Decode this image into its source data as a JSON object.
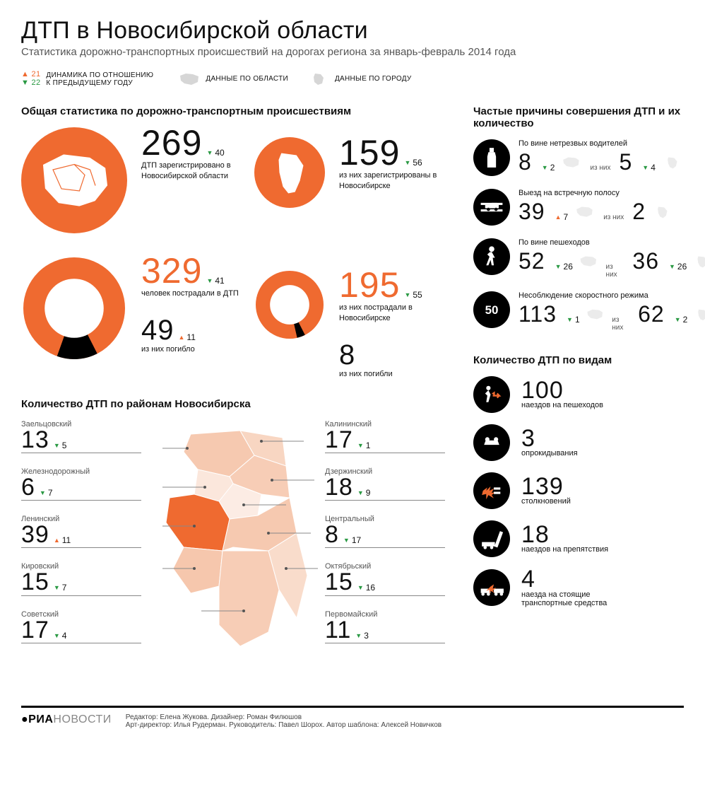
{
  "colors": {
    "accent": "#ef6a30",
    "up": "#ef6a30",
    "down": "#2a9943",
    "black": "#000000",
    "grey_map": "#d6d6d6",
    "bg": "#ffffff"
  },
  "header": {
    "title": "ДТП в Новосибирской области",
    "subtitle": "Статистика дорожно-транспортных происшествий на дорогах региона за январь-февраль 2014 года"
  },
  "legend": {
    "dyn_up": "21",
    "dyn_dn": "22",
    "dyn_label": "ДИНАМИКА ПО ОТНОШЕНИЮ К ПРЕДЫДУЩЕМУ ГОДУ",
    "region_label": "ДАННЫЕ ПО ОБЛАСТИ",
    "city_label": "ДАННЫЕ ПО ГОРОДУ"
  },
  "sections": {
    "general": "Общая статистика по дорожно-транспортным происшествиям",
    "causes": "Частые причины совершения ДТП и их количество",
    "districts": "Количество ДТП по районам Новосибирска",
    "types": "Количество ДТП по видам"
  },
  "general": {
    "region_total": {
      "value": "269",
      "change": "40",
      "dir": "dn",
      "desc": "ДТП зарегистрировано в Новосибирской области"
    },
    "city_total": {
      "value": "159",
      "change": "56",
      "dir": "dn",
      "desc": "из них зарегистрированы в Новосибирске"
    },
    "region_injured": {
      "value": "329",
      "change": "41",
      "dir": "dn",
      "desc": "человек пострадали в ДТП"
    },
    "region_dead": {
      "value": "49",
      "change": "11",
      "dir": "up",
      "desc": "из них погибло"
    },
    "city_injured": {
      "value": "195",
      "change": "55",
      "dir": "dn",
      "desc": "из них пострадали в Новосибирске"
    },
    "city_dead": {
      "value": "8",
      "change": "",
      "dir": "",
      "desc": "из них погибли"
    },
    "donut_region": {
      "total": 378,
      "dead": 49,
      "color_main": "#ef6a30",
      "color_dead": "#000000",
      "inner_ratio": 0.58
    },
    "donut_city": {
      "total": 203,
      "dead": 8,
      "color_main": "#ef6a30",
      "color_dead": "#000000",
      "inner_ratio": 0.58
    }
  },
  "causes": [
    {
      "icon": "bottle",
      "title": "По вине нетрезвых водителей",
      "region_n": "8",
      "region_chg": "2",
      "region_dir": "dn",
      "city_n": "5",
      "city_chg": "4",
      "city_dir": "dn"
    },
    {
      "icon": "lane",
      "title": "Выезд на встречную полосу",
      "region_n": "39",
      "region_chg": "7",
      "region_dir": "up",
      "city_n": "2",
      "city_chg": "",
      "city_dir": ""
    },
    {
      "icon": "ped",
      "title": "По вине пешеходов",
      "region_n": "52",
      "region_chg": "26",
      "region_dir": "dn",
      "city_n": "36",
      "city_chg": "26",
      "city_dir": "dn"
    },
    {
      "icon": "speed",
      "title": "Несоблюдение скоростного режима",
      "region_n": "113",
      "region_chg": "1",
      "region_dir": "dn",
      "city_n": "62",
      "city_chg": "2",
      "city_dir": "dn"
    }
  ],
  "of_them": "из них",
  "districts": {
    "left": [
      {
        "name": "Заельцовский",
        "n": "13",
        "chg": "5",
        "dir": "dn"
      },
      {
        "name": "Железнодорожный",
        "n": "6",
        "chg": "7",
        "dir": "dn"
      },
      {
        "name": "Ленинский",
        "n": "39",
        "chg": "11",
        "dir": "up"
      },
      {
        "name": "Кировский",
        "n": "15",
        "chg": "7",
        "dir": "dn"
      },
      {
        "name": "Советский",
        "n": "17",
        "chg": "4",
        "dir": "dn"
      }
    ],
    "right": [
      {
        "name": "Калининский",
        "n": "17",
        "chg": "1",
        "dir": "dn"
      },
      {
        "name": "Дзержинский",
        "n": "18",
        "chg": "9",
        "dir": "dn"
      },
      {
        "name": "Центральный",
        "n": "8",
        "chg": "17",
        "dir": "dn"
      },
      {
        "name": "Октябрьский",
        "n": "15",
        "chg": "16",
        "dir": "dn"
      },
      {
        "name": "Первомайский",
        "n": "11",
        "chg": "3",
        "dir": "dn"
      }
    ],
    "map_colors": {
      "Заельцовский": "#f6c9b0",
      "Калининский": "#f8d6c2",
      "Дзержинский": "#f7cdb6",
      "Железнодорожный": "#fbe7dc",
      "Центральный": "#fcece4",
      "Ленинский": "#ef6a30",
      "Кировский": "#f6c7ad",
      "Октябрьский": "#f6c9b0",
      "Советский": "#f7cdb6",
      "Первомайский": "#f9dccb"
    }
  },
  "types": [
    {
      "icon": "hit-ped",
      "n": "100",
      "label": "наездов на пешеходов"
    },
    {
      "icon": "rollover",
      "n": "3",
      "label": "опрокидывания"
    },
    {
      "icon": "collision",
      "n": "139",
      "label": "столкновений"
    },
    {
      "icon": "obstacle",
      "n": "18",
      "label": "наездов на препятствия"
    },
    {
      "icon": "hit-car",
      "n": "4",
      "label": "наезда на стоящие транспортные средства"
    }
  ],
  "footer": {
    "logo1": "РИА",
    "logo2": "НОВОСТИ",
    "line1": "Редактор: Елена Жукова. Дизайнер: Роман Филюшов",
    "line2": "Арт-директор: Илья Рудерман. Руководитель: Павел Шорох. Автор шаблона: Алексей Новичков"
  }
}
